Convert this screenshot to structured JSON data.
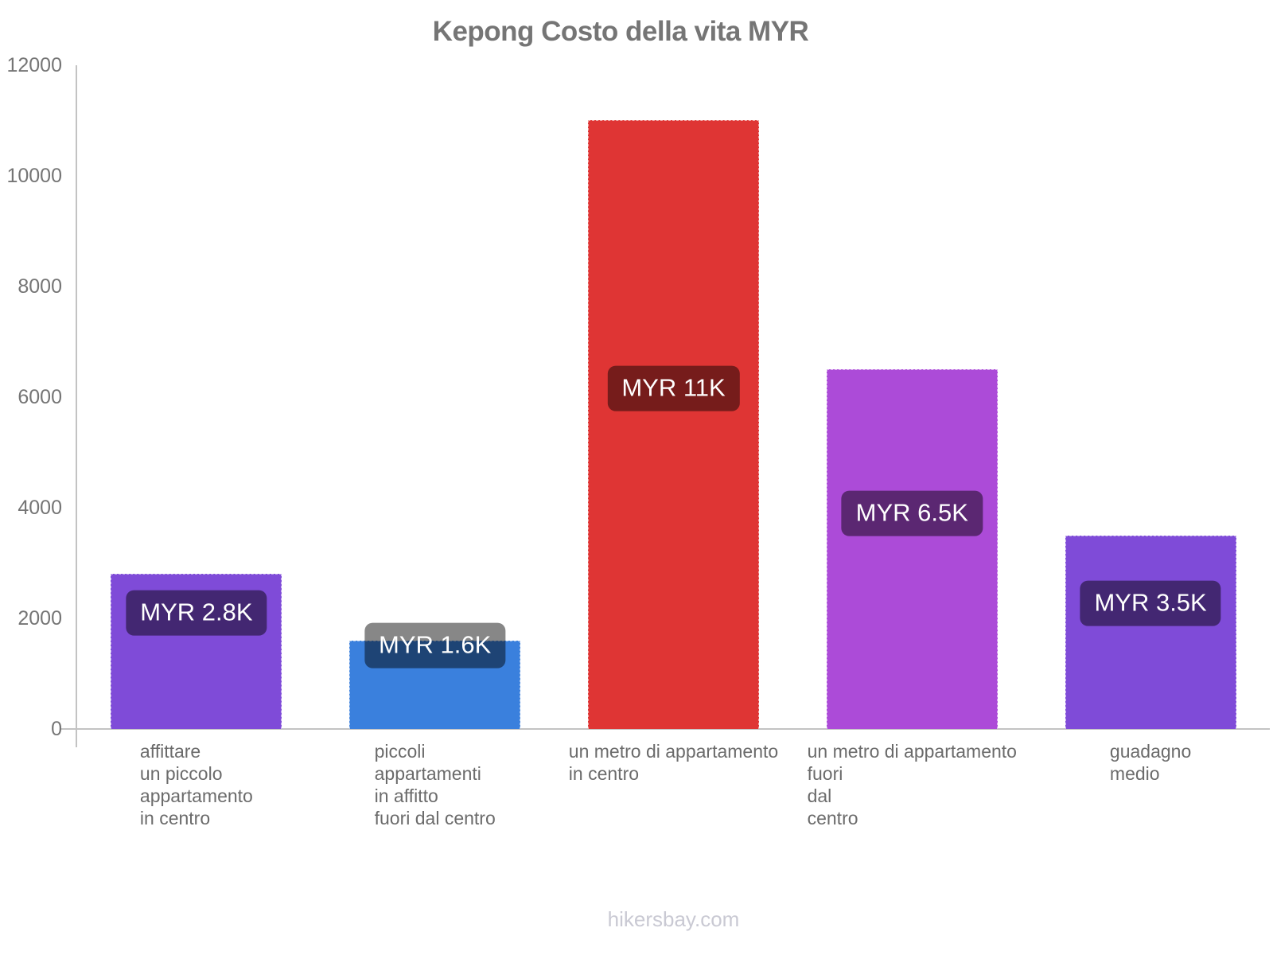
{
  "page": {
    "footer": "hikersbay.com"
  },
  "chart_data": {
    "type": "bar",
    "title": "Kepong Costo della vita MYR",
    "categories": [
      "affittare un piccolo appartamento in centro",
      "piccoli appartamenti in affitto fuori dal centro",
      "un metro di appartamento in centro",
      "un metro di appartamento fuori dal centro",
      "guadagno medio"
    ],
    "category_label_lines": [
      [
        "affittare",
        "un piccolo",
        "appartamento",
        "in centro"
      ],
      [
        "piccoli",
        "appartamenti",
        "in affitto",
        "fuori dal centro"
      ],
      [
        "un metro di appartamento",
        "in centro"
      ],
      [
        "un metro di appartamento",
        "fuori",
        "dal",
        "centro"
      ],
      [
        "guadagno",
        "medio"
      ]
    ],
    "values": [
      2800,
      1600,
      11000,
      6500,
      3500
    ],
    "value_labels": [
      "MYR 2.8K",
      "MYR 1.6K",
      "MYR 11K",
      "MYR 6.5K",
      "MYR 3.5K"
    ],
    "bar_colors": [
      "#7F4BD8",
      "#3A80DD",
      "#DF3534",
      "#AC4BD8",
      "#7F4BD8"
    ],
    "ylabel": "",
    "xlabel": "",
    "ylim": [
      0,
      12000
    ],
    "yticks": [
      0,
      2000,
      4000,
      6000,
      8000,
      10000,
      12000
    ],
    "grid": false,
    "legend": false,
    "layout_hints": {
      "value_label_y_frac": [
        0.25,
        0.05,
        0.44,
        0.4,
        0.35
      ],
      "value_label_bg": "rgba(0,0,0,0.47)",
      "legend_position": "none"
    },
    "colors": {
      "title": "#757575",
      "axis": "#c3c3c3",
      "tick_label": "#757575",
      "category_label": "#6b6b6b",
      "footer": "#c9c9d3"
    }
  }
}
